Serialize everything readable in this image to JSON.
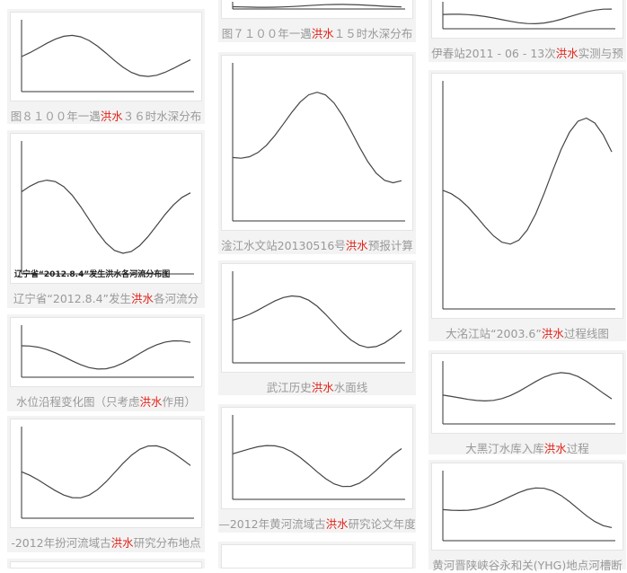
{
  "columns": [
    [
      {
        "caption": [
          "图８１００年一遇",
          "洪水",
          "３６时水深分布"
        ]
      },
      {
        "caption": [
          "辽宁省“2012.8.4”发生",
          "洪水",
          "各河流分"
        ],
        "image_title": "辽宁省“2012.8.4”发生洪水各河流分布图"
      },
      {
        "caption": [
          "水位沿程变化图（只考虑",
          "洪水",
          "作用）"
        ]
      },
      {
        "caption": [
          "-2012年扮河流域古",
          "洪水",
          "研究分布地点"
        ]
      }
    ],
    [
      {
        "caption": [
          "图７１００年一遇",
          "洪水",
          "１５时水深分布"
        ]
      },
      {
        "caption": [
          "淦江水文站20130516号",
          "洪水",
          "预报计算"
        ]
      },
      {
        "caption": [
          "武江历史",
          "洪水",
          "水面线"
        ]
      },
      {
        "caption": [
          "—2012年黄河流域古",
          "洪水",
          "研究论文年度"
        ]
      }
    ],
    [
      {
        "caption": [
          "伊春站2011 - 06 - 13次",
          "洪水",
          "实测与预"
        ]
      },
      {
        "caption": [
          "大洺江站“2003.6”",
          "洪水",
          "过程线图"
        ]
      },
      {
        "caption": [
          "大黑汀水库入库",
          "洪水",
          "过程"
        ]
      },
      {
        "caption": [
          "黄河晋陕峡谷永和关(YHG)地点河槽断"
        ]
      }
    ]
  ]
}
